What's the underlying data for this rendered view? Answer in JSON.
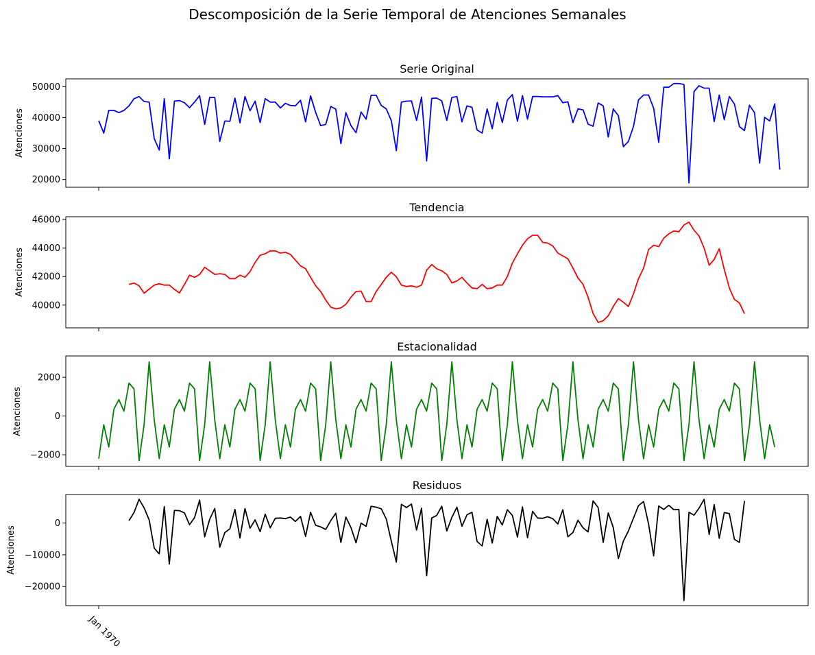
{
  "figure": {
    "title": "Descomposición de la Serie Temporal de Atenciones Semanales",
    "x_tick_label": "Jan 1970"
  },
  "chart_data": [
    {
      "type": "line",
      "title": "Serie Original",
      "ylabel": "Atenciones",
      "color": "#0000ff",
      "ylim": [
        17500,
        52500
      ],
      "yticks": [
        20000,
        30000,
        40000,
        50000
      ],
      "ytick_labels": [
        "20000",
        "30000",
        "40000",
        "50000"
      ],
      "x_index_start": 0,
      "values": [
        39000,
        35000,
        42300,
        42300,
        41600,
        42300,
        43800,
        46100,
        46800,
        45200,
        45000,
        33200,
        29500,
        46100,
        26700,
        45300,
        45500,
        44800,
        43200,
        45000,
        47100,
        37800,
        46500,
        46500,
        32300,
        38900,
        38800,
        46300,
        38300,
        46800,
        42200,
        45300,
        38400,
        46100,
        45000,
        45000,
        43100,
        44600,
        43900,
        43800,
        45600,
        38600,
        47000,
        41700,
        37400,
        37800,
        43600,
        42700,
        31600,
        41600,
        37400,
        35100,
        41800,
        39500,
        47200,
        47200,
        43900,
        42800,
        39000,
        29300,
        45000,
        45300,
        45400,
        39100,
        46600,
        26000,
        46200,
        46300,
        45400,
        39100,
        46500,
        46800,
        38600,
        43800,
        43300,
        36000,
        35000,
        42800,
        36400,
        44900,
        38400,
        45700,
        47400,
        38800,
        47100,
        39500,
        46800,
        46800,
        46700,
        46700,
        46700,
        47100,
        44800,
        45100,
        38400,
        42800,
        42500,
        37900,
        37200,
        44700,
        43800,
        33700,
        42800,
        40600,
        30600,
        32300,
        37200,
        45700,
        47300,
        47300,
        43000,
        32000,
        49800,
        49800,
        51000,
        51000,
        50700,
        18900,
        48400,
        50300,
        49500,
        49500,
        38700,
        47300,
        39300,
        46800,
        44400,
        37100,
        35800,
        44000,
        41600,
        25300,
        40100,
        38900,
        44400,
        23200
      ]
    },
    {
      "type": "line",
      "title": "Tendencia",
      "ylabel": "Atenciones",
      "color": "#ff0000",
      "ylim": [
        38400,
        46200
      ],
      "yticks": [
        40000,
        42000,
        44000,
        46000
      ],
      "ytick_labels": [
        "40000",
        "42000",
        "44000",
        "46000"
      ],
      "x_index_start": 6,
      "values": [
        41450,
        41550,
        41350,
        40830,
        41120,
        41400,
        41500,
        41400,
        41400,
        41100,
        40850,
        41450,
        42100,
        41950,
        42150,
        42650,
        42400,
        42150,
        42200,
        42150,
        41850,
        41850,
        42100,
        41950,
        42350,
        43000,
        43500,
        43600,
        43800,
        43800,
        43650,
        43700,
        43550,
        43150,
        42750,
        42550,
        41950,
        41350,
        40950,
        40350,
        39850,
        39730,
        39800,
        40050,
        40550,
        40950,
        40980,
        40250,
        40250,
        40950,
        41450,
        41950,
        42300,
        41980,
        41400,
        41300,
        41350,
        41250,
        41400,
        42450,
        42850,
        42550,
        42400,
        42150,
        41550,
        41700,
        41950,
        41550,
        41200,
        41150,
        41450,
        41150,
        41200,
        41400,
        41400,
        42000,
        42950,
        43600,
        44200,
        44650,
        44900,
        44900,
        44400,
        44350,
        44150,
        43650,
        43450,
        43250,
        42600,
        41900,
        41450,
        40550,
        39400,
        38780,
        38900,
        39250,
        39900,
        40450,
        40200,
        39900,
        40800,
        41850,
        42600,
        43900,
        44200,
        44100,
        44700,
        45000,
        45200,
        45150,
        45620,
        45820,
        45250,
        44850,
        44000,
        42800,
        43200,
        43950,
        42500,
        41200,
        40400,
        40150,
        39400
      ]
    },
    {
      "type": "line",
      "title": "Estacionalidad",
      "ylabel": "Atenciones",
      "color": "#008000",
      "ylim": [
        -2600,
        3100
      ],
      "yticks": [
        -2000,
        0,
        2000
      ],
      "ytick_labels": [
        "−2000",
        "0",
        "2000"
      ],
      "x_index_start": 0,
      "period": 12,
      "pattern": [
        -2200,
        -450,
        -1600,
        350,
        850,
        250,
        1700,
        1400,
        -2300,
        -450,
        2800,
        -200
      ],
      "values": [
        -2200,
        -450,
        -1600,
        350,
        850,
        250,
        1700,
        1400,
        -2300,
        -450,
        2800,
        -200,
        -2200,
        -450,
        -1600,
        350,
        850,
        250,
        1700,
        1400,
        -2300,
        -450,
        2800,
        -200,
        -2200,
        -450,
        -1600,
        350,
        850,
        250,
        1700,
        1400,
        -2300,
        -450,
        2800,
        -200,
        -2200,
        -450,
        -1600,
        350,
        850,
        250,
        1700,
        1400,
        -2300,
        -450,
        2800,
        -200,
        -2200,
        -450,
        -1600,
        350,
        850,
        250,
        1700,
        1400,
        -2300,
        -450,
        2800,
        -200,
        -2200,
        -450,
        -1600,
        350,
        850,
        250,
        1700,
        1400,
        -2300,
        -450,
        2800,
        -200,
        -2200,
        -450,
        -1600,
        350,
        850,
        250,
        1700,
        1400,
        -2300,
        -450,
        2800,
        -200,
        -2200,
        -450,
        -1600,
        350,
        850,
        250,
        1700,
        1400,
        -2300,
        -450,
        2800,
        -200,
        -2200,
        -450,
        -1600,
        350,
        850,
        250,
        1700,
        1400,
        -2300,
        -450,
        2800,
        -200,
        -2200,
        -450,
        -1600,
        350,
        850,
        250,
        1700,
        1400,
        -2300,
        -450,
        2800,
        -200,
        -2200,
        -450,
        -1600,
        350,
        850,
        250,
        1700,
        1400,
        -2300,
        -450,
        2800,
        -200,
        -2200,
        -450,
        -1600
      ]
    },
    {
      "type": "line",
      "title": "Residuos",
      "ylabel": "Atenciones",
      "color": "#000000",
      "ylim": [
        -26000,
        9000
      ],
      "yticks": [
        -20000,
        -10000,
        0
      ],
      "ytick_labels": [
        "−20000",
        "−10000",
        "0"
      ],
      "x_index_start": 6,
      "values": [
        800,
        3300,
        7500,
        4800,
        1000,
        -7900,
        -9700,
        5200,
        -12900,
        4000,
        3900,
        3200,
        -500,
        1700,
        7200,
        -4300,
        1200,
        4600,
        -7600,
        -3000,
        -1800,
        4300,
        -4700,
        4600,
        -1600,
        1000,
        -2700,
        2800,
        -1500,
        1500,
        1600,
        1400,
        1900,
        500,
        2100,
        -4200,
        3400,
        -700,
        -1200,
        -2000,
        800,
        3100,
        -6100,
        1900,
        -1400,
        -6200,
        0,
        -1000,
        5300,
        5000,
        4500,
        1300,
        -5700,
        -12300,
        5900,
        4900,
        6000,
        -2200,
        4700,
        -16600,
        1600,
        2400,
        5300,
        -2500,
        1800,
        5000,
        -1000,
        2600,
        3400,
        -5800,
        -7200,
        1200,
        -6300,
        2100,
        -600,
        4200,
        2400,
        -4400,
        5100,
        -4600,
        3700,
        1600,
        1500,
        2000,
        1400,
        -300,
        4200,
        -4300,
        -3000,
        900,
        -1500,
        -2800,
        7000,
        4900,
        -6100,
        3200,
        -1400,
        -11200,
        -5700,
        -2500,
        1600,
        5500,
        6800,
        -300,
        -10300,
        5400,
        4300,
        5600,
        4200,
        4300,
        -24400,
        3400,
        2500,
        4700,
        7500,
        -3600,
        5800,
        -4800,
        3300,
        3000,
        -5100,
        -6100,
        7000
      ]
    }
  ]
}
